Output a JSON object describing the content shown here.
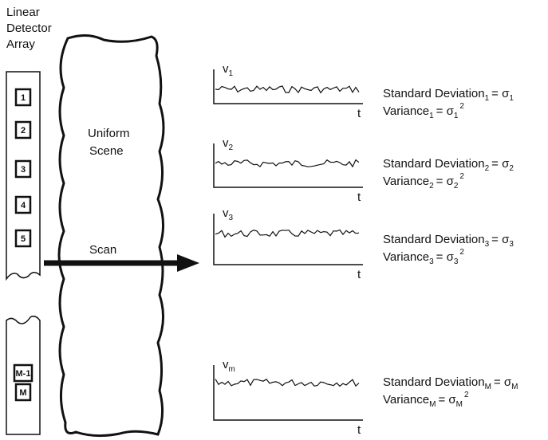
{
  "array_label": [
    "Linear",
    "Detector",
    "Array"
  ],
  "detectors": [
    "1",
    "2",
    "3",
    "4",
    "5",
    "M-1",
    "M"
  ],
  "scene_label": [
    "Uniform",
    "Scene"
  ],
  "scan_label": "Scan",
  "signals": [
    {
      "y_label": "v",
      "y_sub": "1",
      "x_label": "t",
      "std_text": "Standard Deviation",
      "std_sub": "1",
      "std_eq": "= σ",
      "std_eq_sub": "1",
      "var_text": "Variance",
      "var_sub": "1",
      "var_eq": "= σ",
      "var_eq_sub": "1",
      "var_power": "2"
    },
    {
      "y_label": "v",
      "y_sub": "2",
      "x_label": "t",
      "std_text": "Standard Deviation",
      "std_sub": "2",
      "std_eq": "= σ",
      "std_eq_sub": "2",
      "var_text": "Variance",
      "var_sub": "2",
      "var_eq": "= σ",
      "var_eq_sub": "2",
      "var_power": "2"
    },
    {
      "y_label": "v",
      "y_sub": "3",
      "x_label": "t",
      "std_text": "Standard Deviation",
      "std_sub": "3",
      "std_eq": "= σ",
      "std_eq_sub": "3",
      "var_text": "Variance",
      "var_sub": "3",
      "var_eq": "= σ",
      "var_eq_sub": "3",
      "var_power": "2"
    },
    {
      "y_label": "v",
      "y_sub": "m",
      "x_label": "t",
      "std_text": "Standard Deviation",
      "std_sub": "M",
      "std_eq": "= σ",
      "std_eq_sub": "M",
      "var_text": "Variance",
      "var_sub": "M",
      "var_eq": "= σ",
      "var_eq_sub": "M",
      "var_power": "2"
    }
  ]
}
